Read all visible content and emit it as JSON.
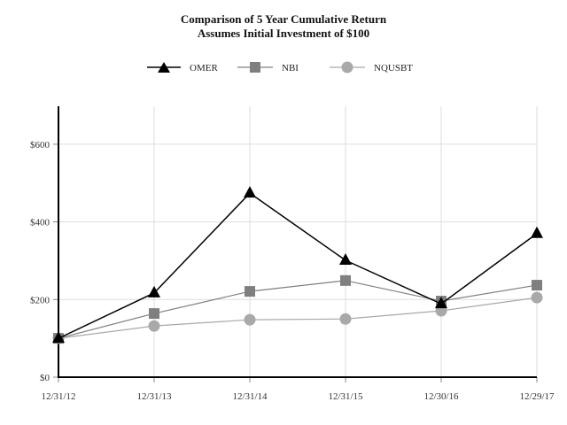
{
  "chart": {
    "title": "Comparison of 5 Year Cumulative Return",
    "subtitle": "Assumes Initial Investment of $100"
  },
  "legend": [
    {
      "label": "OMER",
      "marker": "triangle",
      "color": "#000000"
    },
    {
      "label": "NBI",
      "marker": "square",
      "color": "#7f7f7f"
    },
    {
      "label": "NQUSBT",
      "marker": "circle",
      "color": "#a9a9a9"
    }
  ],
  "axes": {
    "y_ticks": [
      "$0",
      "$200",
      "$400",
      "$600"
    ],
    "x_ticks": [
      "12/31/12",
      "12/31/13",
      "12/31/14",
      "12/31/15",
      "12/30/16",
      "12/29/17"
    ]
  },
  "chart_data": {
    "type": "line",
    "title": "Comparison of 5 Year Cumulative Return",
    "subtitle": "Assumes Initial Investment of $100",
    "xlabel": "",
    "ylabel": "",
    "categories": [
      "12/31/12",
      "12/31/13",
      "12/31/14",
      "12/31/15",
      "12/30/16",
      "12/29/17"
    ],
    "series": [
      {
        "name": "OMER",
        "marker": "triangle",
        "color": "#000000",
        "values": [
          100,
          217,
          474,
          301,
          189,
          370
        ]
      },
      {
        "name": "NBI",
        "marker": "square",
        "color": "#7f7f7f",
        "values": [
          100,
          164,
          221,
          249,
          196,
          237
        ]
      },
      {
        "name": "NQUSBT",
        "marker": "circle",
        "color": "#a9a9a9",
        "values": [
          100,
          132,
          148,
          150,
          171,
          205
        ]
      }
    ],
    "ylim": [
      0,
      700
    ],
    "yticks": [
      0,
      200,
      400,
      600
    ],
    "ytick_labels": [
      "$0",
      "$200",
      "$400",
      "$600"
    ],
    "grid": true,
    "legend_position": "top"
  }
}
